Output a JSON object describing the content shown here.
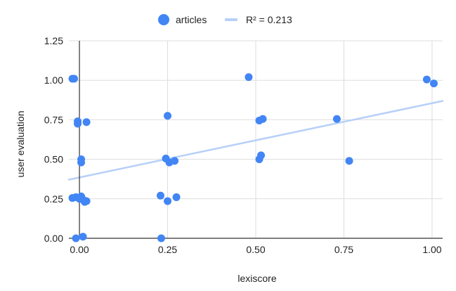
{
  "chart_data": {
    "type": "scatter",
    "xlabel": "lexiscore",
    "ylabel": "user evaluation",
    "xlim": [
      -0.03,
      1.03
    ],
    "ylim": [
      0,
      1.25
    ],
    "x_ticks": [
      "0.00",
      "0.25",
      "0.50",
      "0.75",
      "1.00"
    ],
    "y_ticks": [
      "0.00",
      "0.25",
      "0.50",
      "0.75",
      "1.00",
      "1.25"
    ],
    "grid": true,
    "legend_position": "top",
    "series": [
      {
        "name": "articles",
        "color": "#4285F4",
        "points": [
          [
            -0.02,
            1.01
          ],
          [
            -0.015,
            1.01
          ],
          [
            -0.005,
            0.74
          ],
          [
            -0.005,
            0.725
          ],
          [
            0.02,
            0.735
          ],
          [
            0.005,
            0.5
          ],
          [
            0.005,
            0.48
          ],
          [
            -0.02,
            0.255
          ],
          [
            -0.01,
            0.26
          ],
          [
            0.0,
            0.25
          ],
          [
            0.005,
            0.265
          ],
          [
            0.01,
            0.245
          ],
          [
            0.015,
            0.23
          ],
          [
            0.02,
            0.235
          ],
          [
            -0.01,
            0.0
          ],
          [
            0.01,
            0.01
          ],
          [
            0.25,
            0.775
          ],
          [
            0.245,
            0.505
          ],
          [
            0.255,
            0.48
          ],
          [
            0.27,
            0.49
          ],
          [
            0.23,
            0.27
          ],
          [
            0.25,
            0.235
          ],
          [
            0.275,
            0.26
          ],
          [
            0.232,
            0.0
          ],
          [
            0.48,
            1.02
          ],
          [
            0.51,
            0.745
          ],
          [
            0.52,
            0.755
          ],
          [
            0.51,
            0.5
          ],
          [
            0.515,
            0.525
          ],
          [
            0.73,
            0.755
          ],
          [
            0.765,
            0.49
          ],
          [
            0.985,
            1.005
          ],
          [
            1.005,
            0.98
          ]
        ]
      }
    ],
    "trendline": {
      "name": "R² = 0.213",
      "color": "#b7d0f8",
      "slope": 0.47,
      "intercept": 0.385
    }
  }
}
